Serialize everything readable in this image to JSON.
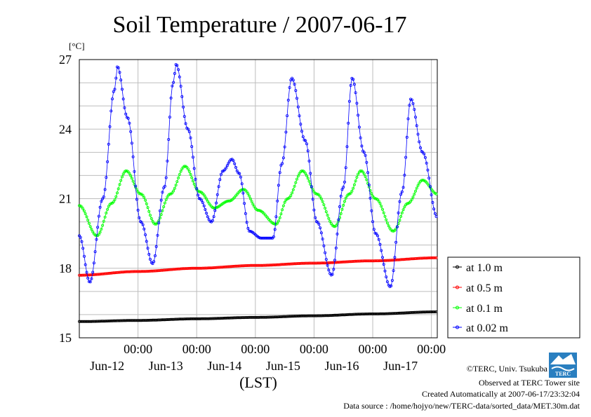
{
  "chart_data": {
    "type": "line",
    "title": "Soil Temperature / 2007-06-17",
    "ylabel": "[°C]",
    "xlabel": "(LST)",
    "ylim": [
      15,
      27
    ],
    "xlim_days": [
      0,
      6.1
    ],
    "y_ticks": [
      "27",
      "24",
      "21",
      "18",
      "15"
    ],
    "x_ticks": [
      {
        "time": "00:00",
        "date": "Jun-12"
      },
      {
        "time": "00:00",
        "date": "Jun-13"
      },
      {
        "time": "00:00",
        "date": "Jun-14"
      },
      {
        "time": "00:00",
        "date": "Jun-15"
      },
      {
        "time": "00:00",
        "date": "Jun-16"
      },
      {
        "time": "00:00",
        "date": "Jun-17"
      }
    ],
    "grid": true,
    "legend_position": "right",
    "series": [
      {
        "name": "at 1.0 m",
        "color": "#000000",
        "points": [
          [
            0.0,
            15.7
          ],
          [
            1.0,
            15.75
          ],
          [
            2.0,
            15.82
          ],
          [
            3.0,
            15.88
          ],
          [
            4.0,
            15.95
          ],
          [
            5.0,
            16.03
          ],
          [
            6.1,
            16.12
          ]
        ]
      },
      {
        "name": "at 0.5 m",
        "color": "#ff0000",
        "points": [
          [
            0.0,
            17.7
          ],
          [
            1.0,
            17.86
          ],
          [
            2.0,
            18.0
          ],
          [
            3.0,
            18.12
          ],
          [
            4.0,
            18.22
          ],
          [
            5.0,
            18.32
          ],
          [
            6.1,
            18.45
          ]
        ]
      },
      {
        "name": "at 0.1 m",
        "color": "#00ff00",
        "points": [
          [
            0.0,
            20.7
          ],
          [
            0.3,
            19.4
          ],
          [
            0.55,
            20.8
          ],
          [
            0.8,
            22.2
          ],
          [
            1.05,
            21.2
          ],
          [
            1.3,
            19.9
          ],
          [
            1.55,
            21.2
          ],
          [
            1.8,
            22.4
          ],
          [
            2.05,
            21.3
          ],
          [
            2.3,
            20.6
          ],
          [
            2.55,
            20.9
          ],
          [
            2.8,
            21.4
          ],
          [
            3.05,
            20.5
          ],
          [
            3.35,
            19.9
          ],
          [
            3.55,
            21.0
          ],
          [
            3.8,
            22.2
          ],
          [
            4.05,
            21.2
          ],
          [
            4.35,
            19.8
          ],
          [
            4.6,
            21.2
          ],
          [
            4.8,
            22.2
          ],
          [
            5.05,
            21.0
          ],
          [
            5.35,
            19.6
          ],
          [
            5.6,
            20.8
          ],
          [
            5.85,
            21.8
          ],
          [
            6.1,
            21.2
          ]
        ]
      },
      {
        "name": "at 0.02 m",
        "color": "#0000ff",
        "points": [
          [
            0.0,
            19.4
          ],
          [
            0.18,
            17.4
          ],
          [
            0.4,
            21.0
          ],
          [
            0.6,
            25.7
          ],
          [
            0.65,
            26.7
          ],
          [
            0.82,
            24.5
          ],
          [
            1.05,
            20.0
          ],
          [
            1.25,
            18.2
          ],
          [
            1.45,
            21.5
          ],
          [
            1.6,
            26.0
          ],
          [
            1.65,
            26.8
          ],
          [
            1.85,
            24.0
          ],
          [
            2.05,
            21.0
          ],
          [
            2.25,
            20.0
          ],
          [
            2.45,
            22.2
          ],
          [
            2.6,
            22.7
          ],
          [
            2.72,
            22.1
          ],
          [
            2.9,
            19.6
          ],
          [
            3.1,
            19.3
          ],
          [
            3.3,
            19.3
          ],
          [
            3.45,
            22.5
          ],
          [
            3.62,
            26.2
          ],
          [
            3.85,
            23.5
          ],
          [
            4.05,
            20.0
          ],
          [
            4.3,
            17.7
          ],
          [
            4.5,
            21.5
          ],
          [
            4.65,
            26.2
          ],
          [
            4.85,
            23.0
          ],
          [
            5.05,
            19.5
          ],
          [
            5.3,
            17.2
          ],
          [
            5.5,
            21.3
          ],
          [
            5.65,
            25.3
          ],
          [
            5.85,
            23.0
          ],
          [
            6.1,
            20.2
          ]
        ]
      }
    ]
  },
  "legend_items": [
    "at 1.0 m",
    "at 0.5 m",
    "at 0.1 m",
    "at 0.02 m"
  ],
  "footer": {
    "copyright": "©TERC, Univ. Tsukuba",
    "observed": "Observed at TERC Tower site",
    "created": "Created Automatically at 2007-06-17/23:32:04",
    "source": "Data source : /home/hojyo/new/TERC-data/sorted_data/MET.30m.dat",
    "logo_text": "TERC"
  }
}
